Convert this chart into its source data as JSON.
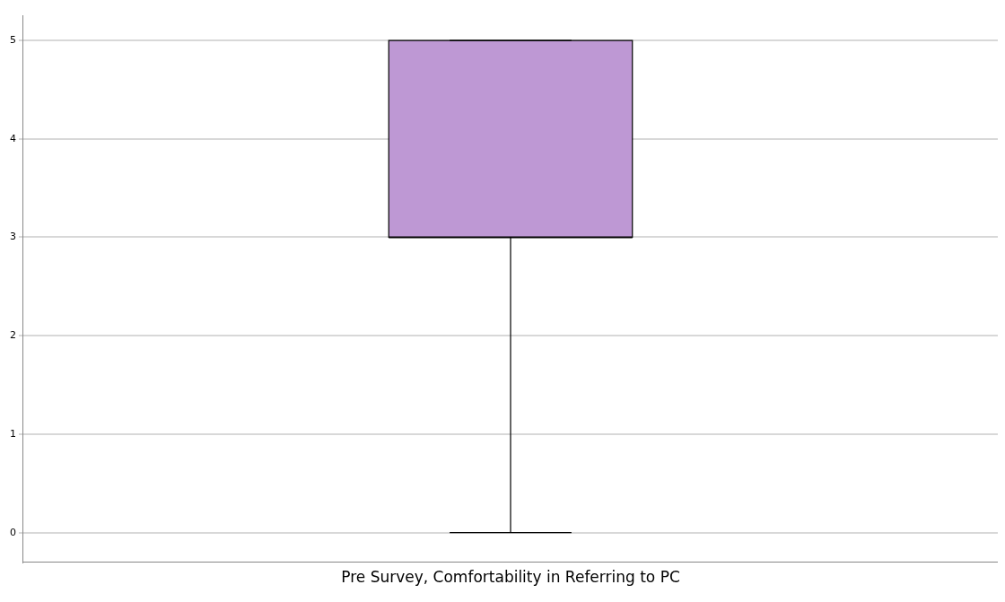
{
  "chart_data": {
    "type": "box",
    "categories": [
      "Pre Survey, Comfortability in Referring to PC"
    ],
    "boxes": [
      {
        "low": 0,
        "q1": 3,
        "median": 3,
        "q3": 5,
        "high": 5
      }
    ],
    "color": "#be98d4",
    "ylim": [
      -0.3,
      5.25
    ],
    "yticks": [
      0,
      1,
      2,
      3,
      4,
      5
    ],
    "grid": "y"
  }
}
